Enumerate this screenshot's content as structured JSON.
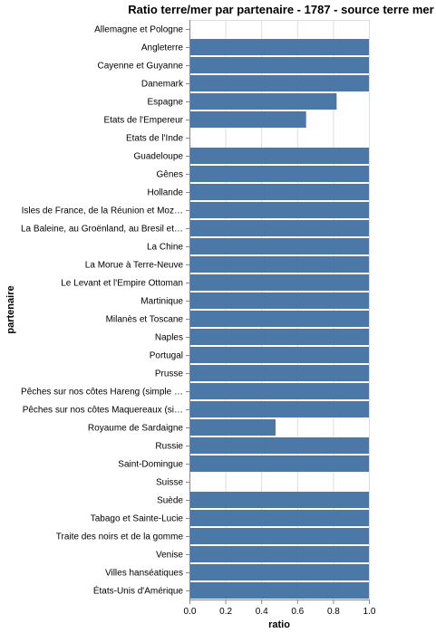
{
  "chart_data": {
    "type": "bar",
    "orientation": "horizontal",
    "title": "Ratio terre/mer par partenaire - 1787 - source terre mer",
    "xlabel": "ratio",
    "ylabel": "partenaire",
    "xlim": [
      0,
      1
    ],
    "x_ticks": [
      "0.0",
      "0.2",
      "0.4",
      "0.6",
      "0.8",
      "1.0"
    ],
    "grid": true,
    "bar_color": "#4c78a8",
    "categories": [
      "Allemagne et Pologne",
      "Angleterre",
      "Cayenne et Guyanne",
      "Danemark",
      "Espagne",
      "Etats de l'Empereur",
      "Etats de l'Inde",
      "Guadeloupe",
      "Gênes",
      "Hollande",
      "Isles de France, de la Réunion et Moz…",
      "La Baleine, au Groënland, au Bresil et…",
      "La Chine",
      "La Morue à Terre-Neuve",
      "Le Levant et l'Empire Ottoman",
      "Martinique",
      "Milanès et Toscane",
      "Naples",
      "Portugal",
      "Prusse",
      "Pêches sur nos côtes Hareng (simple …",
      "Pêches sur nos côtes Maquereaux (si…",
      "Royaume de Sardaigne",
      "Russie",
      "Saint-Domingue",
      "Suisse",
      "Suède",
      "Tabago et Sainte-Lucie",
      "Traite des noirs et de la gomme",
      "Venise",
      "Villes hanséatiques",
      "États-Unis d'Amérique"
    ],
    "values": [
      0,
      1,
      1,
      1,
      0.82,
      0.65,
      0,
      1,
      1,
      1,
      1,
      1,
      1,
      1,
      1,
      1,
      1,
      1,
      1,
      1,
      1,
      1,
      0.48,
      1,
      1,
      0,
      1,
      1,
      1,
      1,
      1,
      1
    ]
  }
}
